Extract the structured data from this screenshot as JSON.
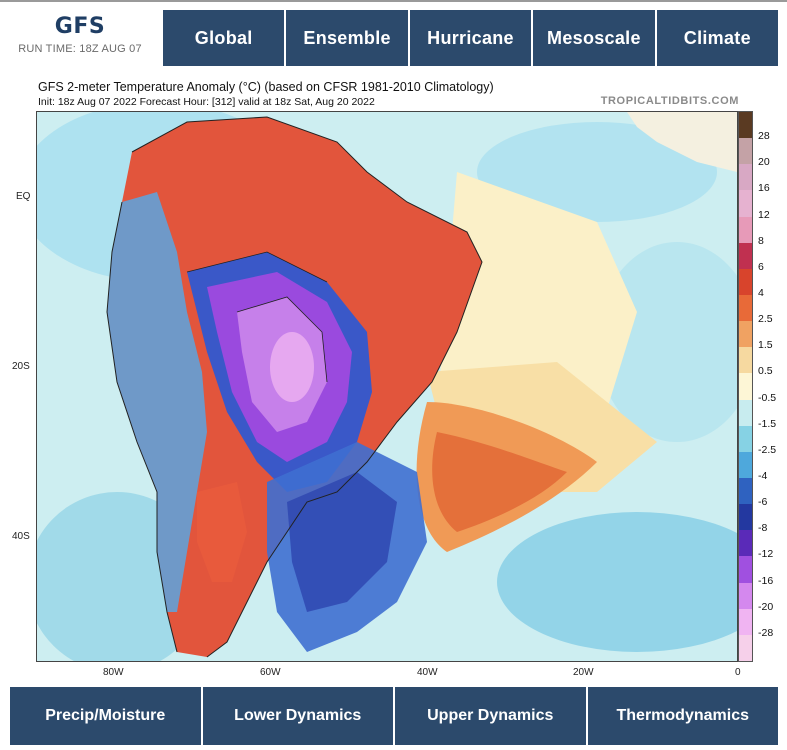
{
  "brand": {
    "model": "GFS",
    "run_time": "RUN TIME: 18Z AUG 07"
  },
  "top_nav": [
    "Global",
    "Ensemble",
    "Hurricane",
    "Mesoscale",
    "Climate"
  ],
  "map": {
    "title": "GFS 2-meter Temperature Anomaly (°C) (based on CFSR 1981-2010 Climatology)",
    "subtitle": "Init: 18z Aug 07 2022   Forecast Hour: [312]   valid at 18z Sat, Aug 20 2022",
    "credit": "TROPICALTIDBITS.COM",
    "lat_labels": [
      "EQ",
      "20S",
      "40S"
    ],
    "lon_labels": [
      "80W",
      "60W",
      "40W",
      "20W",
      "0"
    ]
  },
  "colorbar": {
    "labels": [
      "28",
      "20",
      "16",
      "12",
      "8",
      "6",
      "4",
      "2.5",
      "1.5",
      "0.5",
      "-0.5",
      "-1.5",
      "-2.5",
      "-4",
      "-6",
      "-8",
      "-12",
      "-16",
      "-20",
      "-28"
    ],
    "colors": [
      "#5a3a22",
      "#c4a2a6",
      "#d8a8c4",
      "#e6b2d0",
      "#e79ab8",
      "#c03050",
      "#d8442c",
      "#e86a38",
      "#f0a262",
      "#f6d9a0",
      "#fdf6d6",
      "#c8ecef",
      "#86d2e4",
      "#4ea8dc",
      "#2f62c0",
      "#2338a0",
      "#5a2ab8",
      "#a050e0",
      "#d488ee",
      "#f0b4f2",
      "#f6d0ea"
    ]
  },
  "bottom_nav": [
    "Precip/Moisture",
    "Lower Dynamics",
    "Upper Dynamics",
    "Thermodynamics"
  ]
}
